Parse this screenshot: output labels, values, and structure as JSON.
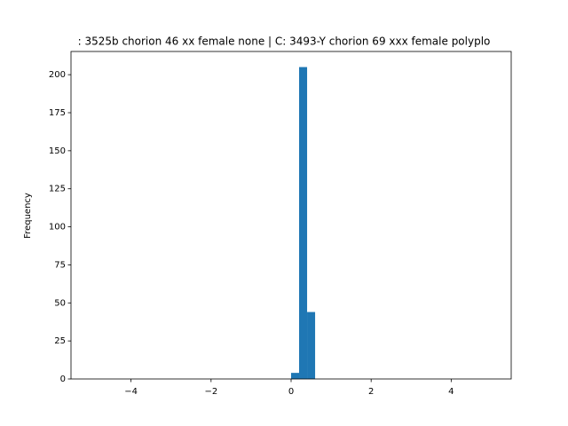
{
  "chart_data": {
    "type": "histogram",
    "title": ": 3525b chorion 46 xx female none | C: 3493-Y chorion 69 xxx female polyplo",
    "ylabel": "Frequency",
    "bins": [
      -5,
      -4.8,
      -4.6,
      -4.4,
      -4.2,
      -4,
      -3.8,
      -3.6,
      -3.4,
      -3.2,
      -3,
      -2.8,
      -2.6,
      -2.4,
      -2.2,
      -2,
      -1.8,
      -1.6,
      -1.4,
      -1.2,
      -1,
      -0.8,
      -0.6,
      -0.4,
      -0.2,
      0,
      0.2,
      0.4,
      0.6,
      0.8,
      1,
      1.2,
      1.4,
      1.6,
      1.8,
      2,
      2.2,
      2.4,
      2.6,
      2.8,
      3,
      3.2,
      3.4,
      3.6,
      3.8,
      4,
      4.2,
      4.4,
      4.6,
      4.8,
      5
    ],
    "values": [
      0,
      0,
      0,
      0,
      0,
      0,
      0,
      0,
      0,
      0,
      0,
      0,
      0,
      0,
      0,
      0,
      0,
      0,
      0,
      0,
      0,
      0,
      0,
      0,
      0,
      4,
      205,
      44,
      0,
      0,
      0,
      0,
      0,
      0,
      0,
      0,
      0,
      0,
      0,
      0,
      0,
      0,
      0,
      0,
      0,
      0,
      0,
      0,
      0,
      0
    ],
    "color": "#1f77b4",
    "xlim": [
      -5.5,
      5.5
    ],
    "xticks": [
      {
        "value": -4,
        "label": "−4"
      },
      {
        "value": -2,
        "label": "−2"
      },
      0,
      2,
      4
    ],
    "ylim": [
      0,
      215.25
    ],
    "yticks": [
      0,
      25,
      50,
      75,
      100,
      125,
      150,
      175,
      200
    ]
  }
}
